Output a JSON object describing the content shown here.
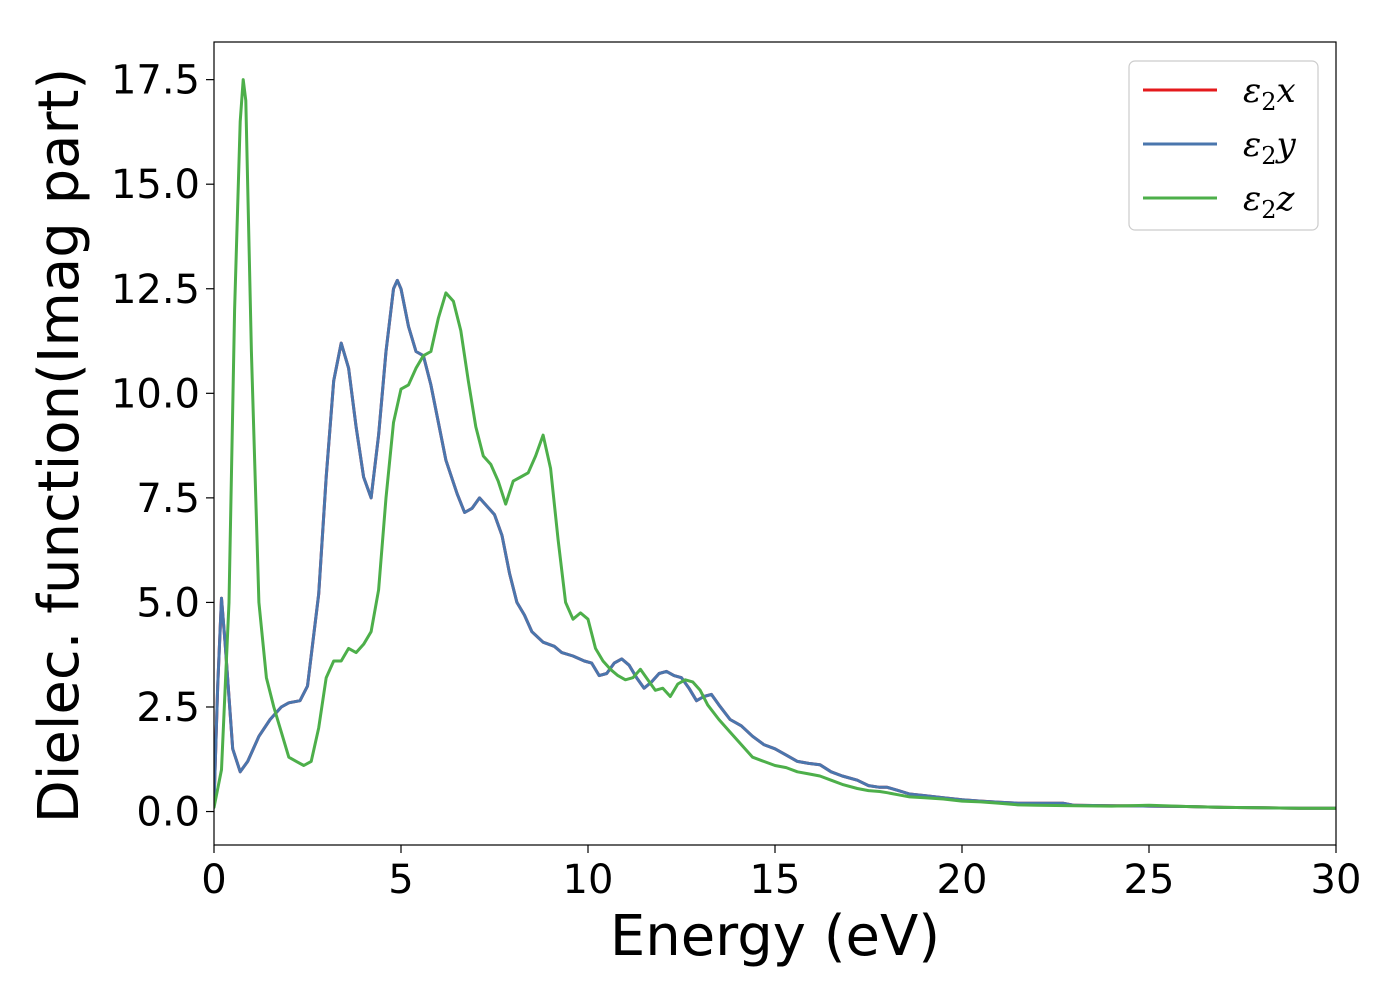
{
  "chart_data": {
    "type": "line",
    "title": "",
    "xlabel": "Energy (eV)",
    "ylabel": "Dielec. function(Imag part)",
    "xlim": [
      0,
      30
    ],
    "ylim": [
      -0.8,
      18.4
    ],
    "xticks": [
      "0",
      "5",
      "10",
      "15",
      "20",
      "25",
      "30"
    ],
    "yticks": [
      "0.0",
      "2.5",
      "5.0",
      "7.5",
      "10.0",
      "12.5",
      "15.0",
      "17.5"
    ],
    "grid": false,
    "legend_position": "top-right",
    "legend": [
      {
        "key": "x",
        "base": "ε",
        "sub": "2",
        "var": "x",
        "color": "#e41a1c"
      },
      {
        "key": "y",
        "base": "ε",
        "sub": "2",
        "var": "y",
        "color": "#4a76ad"
      },
      {
        "key": "z",
        "base": "ε",
        "sub": "2",
        "var": "z",
        "color": "#4daf4a"
      }
    ],
    "series": [
      {
        "key": "x",
        "color": "#e41a1c",
        "points": [
          [
            0,
            0.2
          ],
          [
            0.1,
            3.0
          ],
          [
            0.2,
            5.1
          ],
          [
            0.3,
            4.0
          ],
          [
            0.5,
            1.5
          ],
          [
            0.7,
            0.95
          ],
          [
            0.9,
            1.2
          ],
          [
            1.2,
            1.8
          ],
          [
            1.5,
            2.2
          ],
          [
            1.8,
            2.5
          ],
          [
            2.0,
            2.6
          ],
          [
            2.3,
            2.65
          ],
          [
            2.5,
            3.0
          ],
          [
            2.8,
            5.2
          ],
          [
            3.0,
            8.0
          ],
          [
            3.2,
            10.3
          ],
          [
            3.4,
            11.2
          ],
          [
            3.6,
            10.6
          ],
          [
            3.8,
            9.2
          ],
          [
            4.0,
            8.0
          ],
          [
            4.2,
            7.5
          ],
          [
            4.4,
            9.0
          ],
          [
            4.6,
            11.0
          ],
          [
            4.8,
            12.5
          ],
          [
            4.9,
            12.7
          ],
          [
            5.0,
            12.5
          ],
          [
            5.2,
            11.6
          ],
          [
            5.4,
            11.0
          ],
          [
            5.6,
            10.9
          ],
          [
            5.8,
            10.2
          ],
          [
            6.0,
            9.3
          ],
          [
            6.2,
            8.4
          ],
          [
            6.5,
            7.6
          ],
          [
            6.7,
            7.15
          ],
          [
            6.9,
            7.25
          ],
          [
            7.1,
            7.5
          ],
          [
            7.3,
            7.3
          ],
          [
            7.5,
            7.1
          ],
          [
            7.7,
            6.6
          ],
          [
            7.9,
            5.7
          ],
          [
            8.1,
            5.0
          ],
          [
            8.3,
            4.7
          ],
          [
            8.5,
            4.3
          ],
          [
            8.8,
            4.05
          ],
          [
            9.1,
            3.95
          ],
          [
            9.3,
            3.8
          ],
          [
            9.6,
            3.72
          ],
          [
            9.9,
            3.6
          ],
          [
            10.1,
            3.55
          ],
          [
            10.3,
            3.25
          ],
          [
            10.5,
            3.3
          ],
          [
            10.7,
            3.55
          ],
          [
            10.9,
            3.65
          ],
          [
            11.1,
            3.5
          ],
          [
            11.3,
            3.2
          ],
          [
            11.5,
            2.95
          ],
          [
            11.7,
            3.1
          ],
          [
            11.9,
            3.3
          ],
          [
            12.1,
            3.35
          ],
          [
            12.3,
            3.25
          ],
          [
            12.5,
            3.2
          ],
          [
            12.7,
            2.95
          ],
          [
            12.9,
            2.65
          ],
          [
            13.1,
            2.75
          ],
          [
            13.3,
            2.8
          ],
          [
            13.5,
            2.55
          ],
          [
            13.8,
            2.2
          ],
          [
            14.1,
            2.05
          ],
          [
            14.4,
            1.8
          ],
          [
            14.7,
            1.6
          ],
          [
            15.0,
            1.5
          ],
          [
            15.3,
            1.35
          ],
          [
            15.6,
            1.2
          ],
          [
            15.9,
            1.15
          ],
          [
            16.2,
            1.12
          ],
          [
            16.5,
            0.95
          ],
          [
            16.8,
            0.85
          ],
          [
            17.2,
            0.75
          ],
          [
            17.5,
            0.62
          ],
          [
            17.8,
            0.58
          ],
          [
            18.0,
            0.58
          ],
          [
            18.3,
            0.5
          ],
          [
            18.6,
            0.42
          ],
          [
            19.0,
            0.38
          ],
          [
            19.5,
            0.33
          ],
          [
            20.0,
            0.28
          ],
          [
            20.5,
            0.25
          ],
          [
            21.0,
            0.22
          ],
          [
            21.5,
            0.2
          ],
          [
            22.0,
            0.2
          ],
          [
            22.7,
            0.2
          ],
          [
            23.0,
            0.15
          ],
          [
            24.0,
            0.14
          ],
          [
            25.0,
            0.13
          ],
          [
            26.0,
            0.12
          ],
          [
            27.0,
            0.1
          ],
          [
            28.0,
            0.09
          ],
          [
            29.0,
            0.08
          ],
          [
            30.0,
            0.08
          ]
        ]
      },
      {
        "key": "y",
        "color": "#4a76ad",
        "points": [
          [
            0,
            0.2
          ],
          [
            0.1,
            3.0
          ],
          [
            0.2,
            5.1
          ],
          [
            0.3,
            4.0
          ],
          [
            0.5,
            1.5
          ],
          [
            0.7,
            0.95
          ],
          [
            0.9,
            1.2
          ],
          [
            1.2,
            1.8
          ],
          [
            1.5,
            2.2
          ],
          [
            1.8,
            2.5
          ],
          [
            2.0,
            2.6
          ],
          [
            2.3,
            2.65
          ],
          [
            2.5,
            3.0
          ],
          [
            2.8,
            5.2
          ],
          [
            3.0,
            8.0
          ],
          [
            3.2,
            10.3
          ],
          [
            3.4,
            11.2
          ],
          [
            3.6,
            10.6
          ],
          [
            3.8,
            9.2
          ],
          [
            4.0,
            8.0
          ],
          [
            4.2,
            7.5
          ],
          [
            4.4,
            9.0
          ],
          [
            4.6,
            11.0
          ],
          [
            4.8,
            12.5
          ],
          [
            4.9,
            12.7
          ],
          [
            5.0,
            12.5
          ],
          [
            5.2,
            11.6
          ],
          [
            5.4,
            11.0
          ],
          [
            5.6,
            10.9
          ],
          [
            5.8,
            10.2
          ],
          [
            6.0,
            9.3
          ],
          [
            6.2,
            8.4
          ],
          [
            6.5,
            7.6
          ],
          [
            6.7,
            7.15
          ],
          [
            6.9,
            7.25
          ],
          [
            7.1,
            7.5
          ],
          [
            7.3,
            7.3
          ],
          [
            7.5,
            7.1
          ],
          [
            7.7,
            6.6
          ],
          [
            7.9,
            5.7
          ],
          [
            8.1,
            5.0
          ],
          [
            8.3,
            4.7
          ],
          [
            8.5,
            4.3
          ],
          [
            8.8,
            4.05
          ],
          [
            9.1,
            3.95
          ],
          [
            9.3,
            3.8
          ],
          [
            9.6,
            3.72
          ],
          [
            9.9,
            3.6
          ],
          [
            10.1,
            3.55
          ],
          [
            10.3,
            3.25
          ],
          [
            10.5,
            3.3
          ],
          [
            10.7,
            3.55
          ],
          [
            10.9,
            3.65
          ],
          [
            11.1,
            3.5
          ],
          [
            11.3,
            3.2
          ],
          [
            11.5,
            2.95
          ],
          [
            11.7,
            3.1
          ],
          [
            11.9,
            3.3
          ],
          [
            12.1,
            3.35
          ],
          [
            12.3,
            3.25
          ],
          [
            12.5,
            3.2
          ],
          [
            12.7,
            2.95
          ],
          [
            12.9,
            2.65
          ],
          [
            13.1,
            2.75
          ],
          [
            13.3,
            2.8
          ],
          [
            13.5,
            2.55
          ],
          [
            13.8,
            2.2
          ],
          [
            14.1,
            2.05
          ],
          [
            14.4,
            1.8
          ],
          [
            14.7,
            1.6
          ],
          [
            15.0,
            1.5
          ],
          [
            15.3,
            1.35
          ],
          [
            15.6,
            1.2
          ],
          [
            15.9,
            1.15
          ],
          [
            16.2,
            1.12
          ],
          [
            16.5,
            0.95
          ],
          [
            16.8,
            0.85
          ],
          [
            17.2,
            0.75
          ],
          [
            17.5,
            0.62
          ],
          [
            17.8,
            0.58
          ],
          [
            18.0,
            0.58
          ],
          [
            18.3,
            0.5
          ],
          [
            18.6,
            0.42
          ],
          [
            19.0,
            0.38
          ],
          [
            19.5,
            0.33
          ],
          [
            20.0,
            0.28
          ],
          [
            20.5,
            0.25
          ],
          [
            21.0,
            0.22
          ],
          [
            21.5,
            0.2
          ],
          [
            22.0,
            0.2
          ],
          [
            22.7,
            0.2
          ],
          [
            23.0,
            0.15
          ],
          [
            24.0,
            0.14
          ],
          [
            25.0,
            0.13
          ],
          [
            26.0,
            0.12
          ],
          [
            27.0,
            0.1
          ],
          [
            28.0,
            0.09
          ],
          [
            29.0,
            0.08
          ],
          [
            30.0,
            0.08
          ]
        ]
      },
      {
        "key": "z",
        "color": "#4daf4a",
        "points": [
          [
            0,
            0.1
          ],
          [
            0.2,
            1.0
          ],
          [
            0.4,
            5.0
          ],
          [
            0.55,
            12.0
          ],
          [
            0.7,
            16.5
          ],
          [
            0.78,
            17.5
          ],
          [
            0.85,
            17.0
          ],
          [
            1.0,
            11.0
          ],
          [
            1.2,
            5.0
          ],
          [
            1.4,
            3.2
          ],
          [
            1.6,
            2.5
          ],
          [
            1.8,
            1.9
          ],
          [
            2.0,
            1.3
          ],
          [
            2.2,
            1.2
          ],
          [
            2.4,
            1.1
          ],
          [
            2.6,
            1.2
          ],
          [
            2.8,
            2.0
          ],
          [
            3.0,
            3.2
          ],
          [
            3.2,
            3.6
          ],
          [
            3.4,
            3.6
          ],
          [
            3.6,
            3.9
          ],
          [
            3.8,
            3.8
          ],
          [
            4.0,
            4.0
          ],
          [
            4.2,
            4.3
          ],
          [
            4.4,
            5.3
          ],
          [
            4.6,
            7.5
          ],
          [
            4.8,
            9.3
          ],
          [
            5.0,
            10.1
          ],
          [
            5.2,
            10.2
          ],
          [
            5.4,
            10.6
          ],
          [
            5.6,
            10.9
          ],
          [
            5.8,
            11.0
          ],
          [
            6.0,
            11.8
          ],
          [
            6.2,
            12.4
          ],
          [
            6.4,
            12.2
          ],
          [
            6.6,
            11.5
          ],
          [
            6.8,
            10.3
          ],
          [
            7.0,
            9.2
          ],
          [
            7.2,
            8.5
          ],
          [
            7.4,
            8.3
          ],
          [
            7.6,
            7.9
          ],
          [
            7.8,
            7.35
          ],
          [
            8.0,
            7.9
          ],
          [
            8.2,
            8.0
          ],
          [
            8.4,
            8.1
          ],
          [
            8.6,
            8.5
          ],
          [
            8.8,
            9.0
          ],
          [
            9.0,
            8.2
          ],
          [
            9.2,
            6.5
          ],
          [
            9.4,
            5.0
          ],
          [
            9.6,
            4.6
          ],
          [
            9.8,
            4.75
          ],
          [
            10.0,
            4.6
          ],
          [
            10.2,
            3.9
          ],
          [
            10.4,
            3.6
          ],
          [
            10.6,
            3.4
          ],
          [
            10.8,
            3.25
          ],
          [
            11.0,
            3.15
          ],
          [
            11.2,
            3.2
          ],
          [
            11.4,
            3.4
          ],
          [
            11.6,
            3.15
          ],
          [
            11.8,
            2.9
          ],
          [
            12.0,
            2.95
          ],
          [
            12.2,
            2.75
          ],
          [
            12.4,
            3.05
          ],
          [
            12.6,
            3.15
          ],
          [
            12.8,
            3.1
          ],
          [
            13.0,
            2.9
          ],
          [
            13.2,
            2.55
          ],
          [
            13.5,
            2.2
          ],
          [
            13.8,
            1.9
          ],
          [
            14.1,
            1.6
          ],
          [
            14.4,
            1.3
          ],
          [
            14.7,
            1.2
          ],
          [
            15.0,
            1.1
          ],
          [
            15.3,
            1.05
          ],
          [
            15.6,
            0.95
          ],
          [
            15.9,
            0.9
          ],
          [
            16.2,
            0.85
          ],
          [
            16.5,
            0.75
          ],
          [
            16.8,
            0.65
          ],
          [
            17.2,
            0.55
          ],
          [
            17.5,
            0.5
          ],
          [
            17.8,
            0.48
          ],
          [
            18.0,
            0.45
          ],
          [
            18.3,
            0.4
          ],
          [
            18.6,
            0.35
          ],
          [
            19.0,
            0.33
          ],
          [
            19.5,
            0.3
          ],
          [
            20.0,
            0.25
          ],
          [
            20.5,
            0.23
          ],
          [
            21.0,
            0.2
          ],
          [
            21.5,
            0.16
          ],
          [
            22.0,
            0.15
          ],
          [
            23.0,
            0.14
          ],
          [
            24.0,
            0.13
          ],
          [
            25.0,
            0.15
          ],
          [
            26.0,
            0.12
          ],
          [
            27.0,
            0.1
          ],
          [
            28.0,
            0.09
          ],
          [
            29.0,
            0.08
          ],
          [
            30.0,
            0.08
          ]
        ]
      }
    ]
  }
}
